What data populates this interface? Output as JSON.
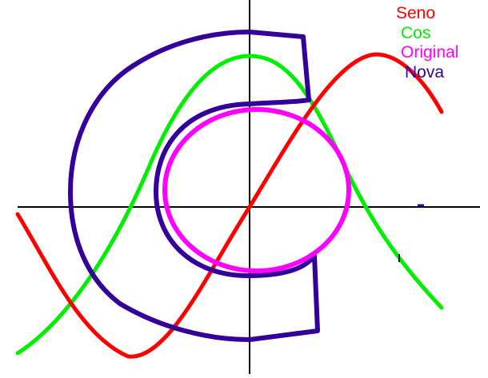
{
  "legend": {
    "items": [
      {
        "key": "seno",
        "label": "Seno",
        "color": "#ff0000"
      },
      {
        "key": "cos",
        "label": "Cos",
        "color": "#00ee00"
      },
      {
        "key": "original",
        "label": "Original",
        "color": "#ff00ff"
      },
      {
        "key": "nova",
        "label": "Nova",
        "color": "#330099"
      }
    ]
  },
  "colors": {
    "axes": "#000000",
    "seno": "#ff0000",
    "cos": "#00ee00",
    "original": "#ff00ff",
    "nova": "#330099",
    "background": "#ffffff"
  }
}
